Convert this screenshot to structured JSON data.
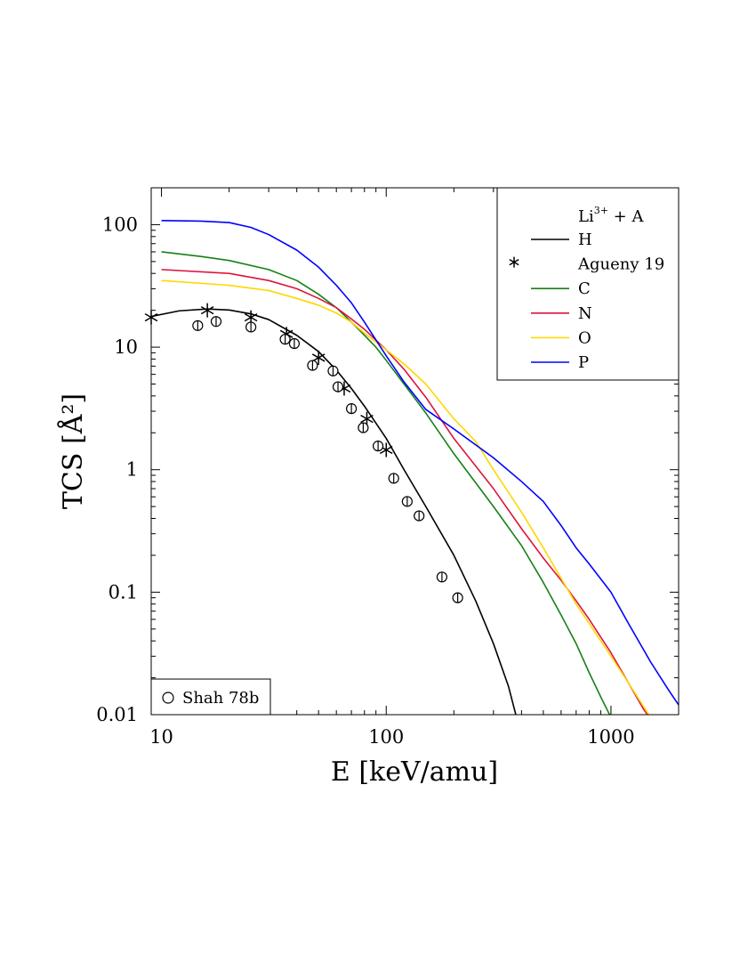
{
  "chart_data": {
    "type": "line",
    "xlabel": "E [keV/amu]",
    "ylabel": "TCS [Å²]",
    "x_scale": "log",
    "y_scale": "log",
    "xlim": [
      9,
      2000
    ],
    "ylim": [
      0.01,
      200
    ],
    "x_ticks": [
      10,
      100,
      1000
    ],
    "x_tick_labels": [
      "10",
      "100",
      "1000"
    ],
    "y_ticks": [
      0.01,
      0.1,
      1,
      10,
      100
    ],
    "y_tick_labels": [
      "0.01",
      "0.1",
      "1",
      "10",
      "100"
    ],
    "grid": false,
    "legend": {
      "placement": "top-right",
      "title_main": "Li",
      "title_sup": "3+",
      "title_rest": " + A",
      "entries": [
        {
          "label": "H",
          "kind": "line",
          "color": "#000000"
        },
        {
          "label": "Agueny 19",
          "kind": "star",
          "color": "#000000"
        },
        {
          "label": "C",
          "kind": "line",
          "color": "#168016"
        },
        {
          "label": "N",
          "kind": "line",
          "color": "#dc143c"
        },
        {
          "label": "O",
          "kind": "line",
          "color": "#ffd700"
        },
        {
          "label": "P",
          "kind": "line",
          "color": "#0000ff"
        }
      ]
    },
    "inset_legend": {
      "placement": "bottom-left",
      "label": "Shah 78b",
      "marker": "open-circle"
    },
    "series": [
      {
        "name": "H",
        "color": "#000000",
        "points": [
          [
            9,
            17.8
          ],
          [
            12,
            19.8
          ],
          [
            16,
            20.5
          ],
          [
            20,
            20.1
          ],
          [
            25,
            18.7
          ],
          [
            30,
            16.8
          ],
          [
            40,
            12.5
          ],
          [
            50,
            9.2
          ],
          [
            60,
            6.5
          ],
          [
            70,
            4.6
          ],
          [
            80,
            3.3
          ],
          [
            100,
            1.8
          ],
          [
            120,
            1.0
          ],
          [
            150,
            0.5
          ],
          [
            200,
            0.2
          ],
          [
            250,
            0.085
          ],
          [
            300,
            0.038
          ],
          [
            350,
            0.017
          ],
          [
            380,
            0.0095
          ]
        ]
      },
      {
        "name": "C",
        "color": "#168016",
        "points": [
          [
            10,
            60
          ],
          [
            15,
            55
          ],
          [
            20,
            51
          ],
          [
            30,
            43
          ],
          [
            40,
            35
          ],
          [
            50,
            27
          ],
          [
            60,
            21
          ],
          [
            70,
            16
          ],
          [
            80,
            12.5
          ],
          [
            90,
            10
          ],
          [
            100,
            7.8
          ],
          [
            120,
            5
          ],
          [
            150,
            2.9
          ],
          [
            200,
            1.35
          ],
          [
            300,
            0.5
          ],
          [
            400,
            0.24
          ],
          [
            500,
            0.12
          ],
          [
            600,
            0.065
          ],
          [
            700,
            0.038
          ],
          [
            800,
            0.022
          ],
          [
            900,
            0.014
          ],
          [
            1000,
            0.0095
          ]
        ]
      },
      {
        "name": "N",
        "color": "#dc143c",
        "points": [
          [
            10,
            43
          ],
          [
            20,
            40
          ],
          [
            30,
            35
          ],
          [
            40,
            30
          ],
          [
            50,
            25
          ],
          [
            60,
            21
          ],
          [
            70,
            17
          ],
          [
            80,
            14
          ],
          [
            100,
            9.5
          ],
          [
            120,
            6.6
          ],
          [
            150,
            3.9
          ],
          [
            200,
            1.8
          ],
          [
            300,
            0.7
          ],
          [
            400,
            0.33
          ],
          [
            500,
            0.19
          ],
          [
            600,
            0.125
          ],
          [
            700,
            0.085
          ],
          [
            800,
            0.06
          ],
          [
            1000,
            0.032
          ],
          [
            1200,
            0.018
          ],
          [
            1400,
            0.011
          ],
          [
            1550,
            0.0085
          ]
        ]
      },
      {
        "name": "O",
        "color": "#ffd700",
        "points": [
          [
            10,
            35
          ],
          [
            20,
            32
          ],
          [
            30,
            29
          ],
          [
            40,
            25
          ],
          [
            50,
            22
          ],
          [
            60,
            19
          ],
          [
            70,
            16
          ],
          [
            80,
            13
          ],
          [
            100,
            9.5
          ],
          [
            120,
            7.3
          ],
          [
            150,
            5
          ],
          [
            200,
            2.6
          ],
          [
            250,
            1.7
          ],
          [
            300,
            1.0
          ],
          [
            400,
            0.45
          ],
          [
            500,
            0.23
          ],
          [
            700,
            0.08
          ],
          [
            1000,
            0.03
          ],
          [
            1200,
            0.018
          ],
          [
            1500,
            0.0095
          ]
        ]
      },
      {
        "name": "P",
        "color": "#0000ff",
        "points": [
          [
            10,
            108
          ],
          [
            15,
            107
          ],
          [
            20,
            104
          ],
          [
            25,
            95
          ],
          [
            30,
            83
          ],
          [
            40,
            62
          ],
          [
            50,
            45
          ],
          [
            60,
            32
          ],
          [
            70,
            23
          ],
          [
            80,
            16
          ],
          [
            100,
            8.5
          ],
          [
            120,
            5.2
          ],
          [
            150,
            3.1
          ],
          [
            200,
            2.15
          ],
          [
            300,
            1.25
          ],
          [
            400,
            0.8
          ],
          [
            500,
            0.55
          ],
          [
            600,
            0.35
          ],
          [
            700,
            0.23
          ],
          [
            800,
            0.17
          ],
          [
            1000,
            0.1
          ],
          [
            1200,
            0.055
          ],
          [
            1500,
            0.027
          ],
          [
            1800,
            0.016
          ],
          [
            2000,
            0.012
          ]
        ]
      }
    ],
    "scatter_series": [
      {
        "name": "Agueny 19",
        "marker": "star",
        "color": "#000000",
        "points": [
          [
            9,
            17.5
          ],
          [
            16,
            20
          ],
          [
            25,
            17.5
          ],
          [
            36,
            12.8
          ],
          [
            50,
            8.2
          ],
          [
            65,
            4.6
          ],
          [
            82,
            2.6
          ],
          [
            100,
            1.45
          ]
        ]
      },
      {
        "name": "Shah 78b",
        "marker": "open-circle",
        "color": "#000000",
        "points": [
          [
            14.5,
            15
          ],
          [
            17.5,
            16.2
          ],
          [
            25,
            14.6
          ],
          [
            35.5,
            11.6
          ],
          [
            39,
            10.7
          ],
          [
            47,
            7.1
          ],
          [
            58,
            6.4
          ],
          [
            61,
            4.75
          ],
          [
            70,
            3.15
          ],
          [
            79,
            2.2
          ],
          [
            92,
            1.56
          ],
          [
            108,
            0.85
          ],
          [
            124,
            0.55
          ],
          [
            140,
            0.42
          ],
          [
            177,
            0.133
          ],
          [
            208,
            0.09
          ]
        ]
      }
    ]
  }
}
